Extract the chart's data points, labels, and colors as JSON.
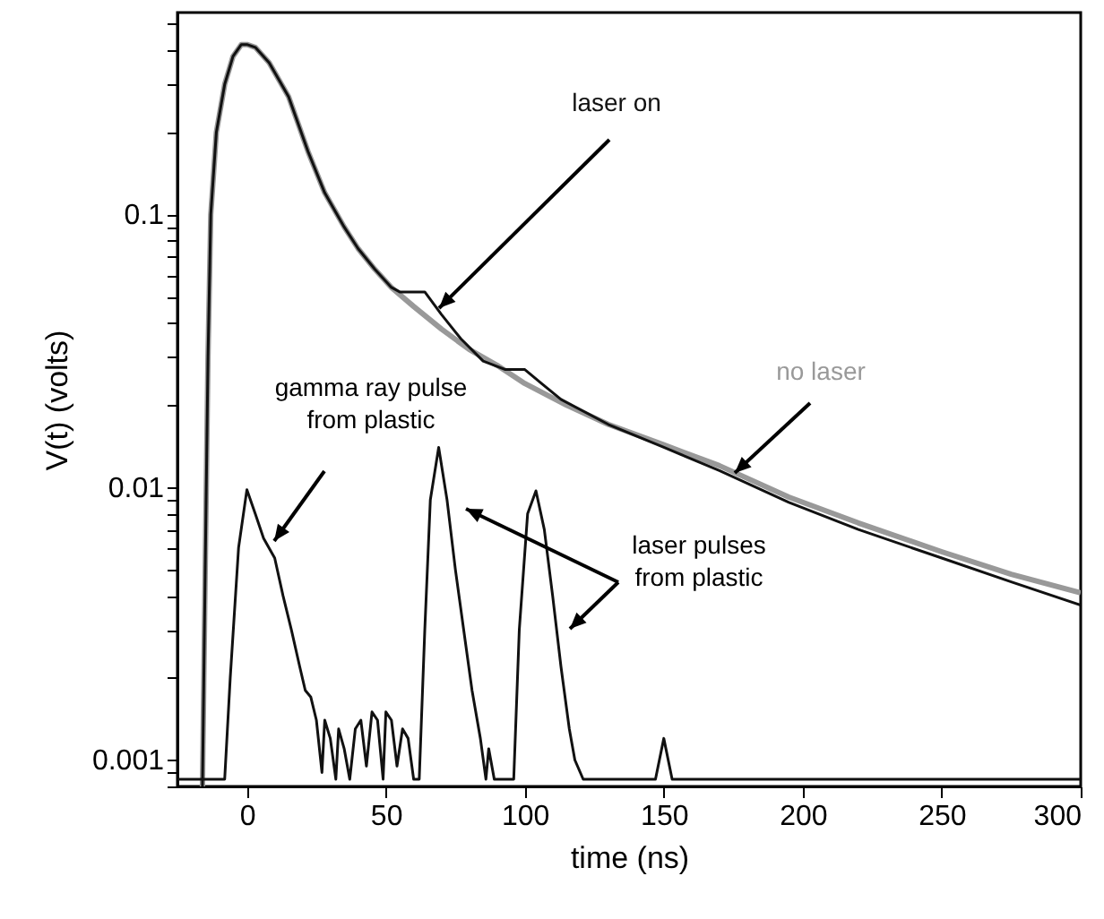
{
  "chart_data": {
    "type": "line",
    "xlabel": "time (ns)",
    "ylabel": "V(t) (volts)",
    "log": "y",
    "xlim": [
      -25,
      300
    ],
    "xticks": [
      0,
      50,
      100,
      150,
      200,
      250,
      300
    ],
    "ylim": [
      0.0008,
      0.55
    ],
    "yticks": [
      {
        "value": 0.0008,
        "label": null
      },
      {
        "value": 0.0009,
        "label": null
      },
      0.001,
      {
        "value": 0.002,
        "label": null
      },
      {
        "value": 0.003,
        "label": null
      },
      {
        "value": 0.004,
        "label": null
      },
      {
        "value": 0.005,
        "label": null
      },
      {
        "value": 0.006,
        "label": null
      },
      {
        "value": 0.007,
        "label": null
      },
      {
        "value": 0.008,
        "label": null
      },
      {
        "value": 0.009,
        "label": null
      },
      0.01,
      {
        "value": 0.02,
        "label": null
      },
      {
        "value": 0.03,
        "label": null
      },
      {
        "value": 0.04,
        "label": null
      },
      {
        "value": 0.05,
        "label": null
      },
      {
        "value": 0.06,
        "label": null
      },
      {
        "value": 0.07,
        "label": null
      },
      {
        "value": 0.08,
        "label": null
      },
      {
        "value": 0.09,
        "label": null
      },
      0.1,
      {
        "value": 0.2,
        "label": null
      },
      {
        "value": 0.3,
        "label": null
      },
      {
        "value": 0.4,
        "label": null
      },
      {
        "value": 0.5,
        "label": null
      }
    ],
    "grid": false,
    "marker": "none",
    "line_style": "solid",
    "annotations": [
      "gamma ray pulse\nfrom plastic",
      "laser pulses\nfrom plastic"
    ],
    "series": [
      {
        "name": "no laser",
        "color": "#999999",
        "x": [
          -16,
          -15,
          -14,
          -13,
          -11,
          -8,
          -5,
          -2,
          0,
          3,
          8,
          15,
          22,
          28,
          35,
          40,
          46,
          52,
          60,
          70,
          80,
          90,
          100,
          115,
          130,
          150,
          170,
          195,
          220,
          250,
          275,
          300
        ],
        "values": [
          0.0008,
          0.005,
          0.03,
          0.1,
          0.2,
          0.3,
          0.38,
          0.42,
          0.42,
          0.41,
          0.36,
          0.27,
          0.17,
          0.12,
          0.09,
          0.075,
          0.063,
          0.054,
          0.046,
          0.038,
          0.032,
          0.028,
          0.024,
          0.02,
          0.017,
          0.0143,
          0.012,
          0.0092,
          0.0074,
          0.0058,
          0.0048,
          0.0041
        ]
      },
      {
        "name": "laser on",
        "color": "#111111",
        "x": [
          -16,
          -15,
          -14,
          -13,
          -11,
          -8,
          -5,
          -2,
          0,
          3,
          8,
          15,
          22,
          28,
          35,
          40,
          46,
          52,
          55,
          64,
          70,
          77,
          85,
          93,
          100,
          106,
          113,
          130,
          150,
          170,
          195,
          220,
          250,
          275,
          300
        ],
        "values": [
          0.0008,
          0.005,
          0.03,
          0.1,
          0.2,
          0.3,
          0.38,
          0.42,
          0.42,
          0.41,
          0.36,
          0.27,
          0.17,
          0.12,
          0.09,
          0.075,
          0.063,
          0.054,
          0.052,
          0.052,
          0.043,
          0.035,
          0.029,
          0.027,
          0.027,
          0.024,
          0.021,
          0.017,
          0.014,
          0.0115,
          0.0088,
          0.007,
          0.0055,
          0.0045,
          0.0037
        ]
      },
      {
        "color": "#111111",
        "x": [
          -25,
          -8,
          -6,
          -3,
          0,
          3,
          6,
          10,
          13,
          16,
          19,
          21,
          23,
          25,
          27,
          28,
          30,
          32,
          33,
          35,
          37,
          39,
          41,
          43,
          45,
          47,
          49,
          50,
          52,
          54,
          56,
          58,
          60,
          62,
          64,
          66,
          69,
          72,
          75,
          78,
          81,
          84,
          86,
          87,
          89,
          96,
          98,
          101,
          104,
          107,
          110,
          113,
          116,
          118,
          121,
          147,
          150,
          153,
          300
        ],
        "values": [
          0.00085,
          0.00085,
          0.002,
          0.006,
          0.0098,
          0.008,
          0.0065,
          0.0055,
          0.004,
          0.003,
          0.0022,
          0.0018,
          0.0017,
          0.0014,
          0.0009,
          0.0014,
          0.0012,
          0.00085,
          0.0013,
          0.0011,
          0.00085,
          0.0013,
          0.0014,
          0.00095,
          0.0015,
          0.0014,
          0.00085,
          0.0015,
          0.0014,
          0.00095,
          0.0013,
          0.0012,
          0.00085,
          0.00085,
          0.003,
          0.009,
          0.014,
          0.009,
          0.005,
          0.003,
          0.0018,
          0.0012,
          0.00085,
          0.0011,
          0.00085,
          0.00085,
          0.003,
          0.008,
          0.0097,
          0.007,
          0.004,
          0.0022,
          0.0013,
          0.001,
          0.00085,
          0.00085,
          0.0012,
          0.00085,
          0.00085
        ]
      }
    ]
  }
}
